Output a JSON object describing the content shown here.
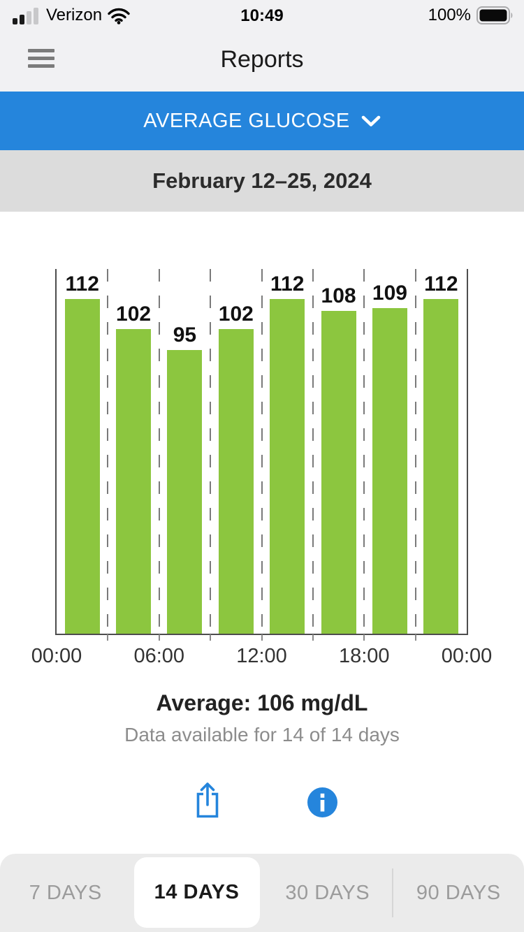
{
  "status_bar": {
    "carrier": "Verizon",
    "time": "10:49",
    "battery_percent": "100%"
  },
  "header": {
    "title": "Reports"
  },
  "metric_selector": {
    "label": "AVERAGE GLUCOSE"
  },
  "date_range": {
    "label": "February 12–25, 2024"
  },
  "chart_data": {
    "type": "bar",
    "values": [
      112,
      102,
      95,
      102,
      112,
      108,
      109,
      112
    ],
    "x_tick_labels": [
      "00:00",
      "06:00",
      "12:00",
      "18:00",
      "00:00"
    ],
    "x_axis_span_hours": 24,
    "ylim": [
      0,
      122
    ],
    "unit": "mg/dL",
    "bar_color": "#8CC63F",
    "grid": "dashed vertical gridlines every 3 hours",
    "value_labels_shown": true
  },
  "summary": {
    "average": "Average: 106 mg/dL",
    "availability": "Data available for 14 of 14 days"
  },
  "actions": {
    "share_icon": "share-icon",
    "info_icon": "info-icon"
  },
  "range_tabs": {
    "options": [
      {
        "label": "7 DAYS",
        "selected": false
      },
      {
        "label": "14 DAYS",
        "selected": true
      },
      {
        "label": "30 DAYS",
        "selected": false
      },
      {
        "label": "90 DAYS",
        "selected": false
      }
    ]
  },
  "colors": {
    "accent_blue": "#2585DC",
    "bar_green": "#8CC63F",
    "date_bar_gray": "#DCDCDC",
    "chrome_gray": "#F1F1F3",
    "tabs_gray": "#EBEBEB"
  }
}
